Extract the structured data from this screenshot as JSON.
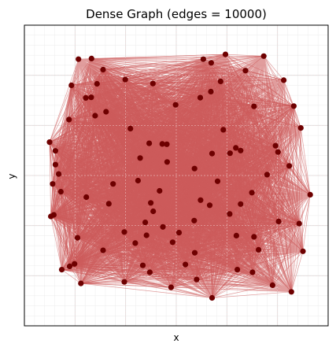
{
  "chart_data": {
    "type": "scatter",
    "title": "Dense Graph (edges = 10000)",
    "xlabel": "x",
    "ylabel": "y",
    "xlim": [
      0,
      1
    ],
    "ylim": [
      0,
      1
    ],
    "grid": true,
    "show_ticks": false,
    "colors": {
      "node": "#6e0000",
      "edge": "#cd5c5c",
      "grid_major": "#d9d9d9",
      "grid_minor": "#ececec"
    },
    "nodes": [
      [
        0.178,
        0.887
      ],
      [
        0.221,
        0.889
      ],
      [
        0.589,
        0.887
      ],
      [
        0.615,
        0.875
      ],
      [
        0.662,
        0.903
      ],
      [
        0.728,
        0.849
      ],
      [
        0.788,
        0.897
      ],
      [
        0.854,
        0.817
      ],
      [
        0.91,
        0.658
      ],
      [
        0.941,
        0.436
      ],
      [
        0.917,
        0.248
      ],
      [
        0.879,
        0.113
      ],
      [
        0.817,
        0.135
      ],
      [
        0.751,
        0.178
      ],
      [
        0.701,
        0.187
      ],
      [
        0.618,
        0.093
      ],
      [
        0.567,
        0.154
      ],
      [
        0.53,
        0.204
      ],
      [
        0.483,
        0.128
      ],
      [
        0.413,
        0.178
      ],
      [
        0.39,
        0.201
      ],
      [
        0.329,
        0.146
      ],
      [
        0.259,
        0.251
      ],
      [
        0.186,
        0.141
      ],
      [
        0.165,
        0.206
      ],
      [
        0.123,
        0.187
      ],
      [
        0.097,
        0.369
      ],
      [
        0.093,
        0.472
      ],
      [
        0.102,
        0.536
      ],
      [
        0.083,
        0.611
      ],
      [
        0.102,
        0.582
      ],
      [
        0.113,
        0.505
      ],
      [
        0.155,
        0.8
      ],
      [
        0.202,
        0.758
      ],
      [
        0.22,
        0.76
      ],
      [
        0.239,
        0.805
      ],
      [
        0.259,
        0.852
      ],
      [
        0.332,
        0.819
      ],
      [
        0.423,
        0.806
      ],
      [
        0.498,
        0.735
      ],
      [
        0.579,
        0.759
      ],
      [
        0.646,
        0.813
      ],
      [
        0.614,
        0.779
      ],
      [
        0.756,
        0.73
      ],
      [
        0.887,
        0.731
      ],
      [
        0.835,
        0.578
      ],
      [
        0.872,
        0.532
      ],
      [
        0.827,
        0.599
      ],
      [
        0.712,
        0.583
      ],
      [
        0.696,
        0.592
      ],
      [
        0.677,
        0.574
      ],
      [
        0.618,
        0.573
      ],
      [
        0.636,
        0.481
      ],
      [
        0.61,
        0.401
      ],
      [
        0.676,
        0.372
      ],
      [
        0.756,
        0.296
      ],
      [
        0.749,
        0.443
      ],
      [
        0.799,
        0.503
      ],
      [
        0.837,
        0.347
      ],
      [
        0.905,
        0.34
      ],
      [
        0.771,
        0.253
      ],
      [
        0.698,
        0.3
      ],
      [
        0.561,
        0.243
      ],
      [
        0.509,
        0.31
      ],
      [
        0.488,
        0.278
      ],
      [
        0.456,
        0.329
      ],
      [
        0.402,
        0.301
      ],
      [
        0.365,
        0.275
      ],
      [
        0.329,
        0.312
      ],
      [
        0.398,
        0.344
      ],
      [
        0.424,
        0.381
      ],
      [
        0.445,
        0.449
      ],
      [
        0.416,
        0.409
      ],
      [
        0.374,
        0.483
      ],
      [
        0.381,
        0.558
      ],
      [
        0.411,
        0.607
      ],
      [
        0.349,
        0.656
      ],
      [
        0.469,
        0.604
      ],
      [
        0.454,
        0.605
      ],
      [
        0.292,
        0.472
      ],
      [
        0.278,
        0.406
      ],
      [
        0.204,
        0.428
      ],
      [
        0.175,
        0.293
      ],
      [
        0.149,
        0.198
      ],
      [
        0.233,
        0.699
      ],
      [
        0.269,
        0.712
      ],
      [
        0.147,
        0.686
      ],
      [
        0.12,
        0.446
      ],
      [
        0.087,
        0.364
      ],
      [
        0.559,
        0.35
      ],
      [
        0.58,
        0.418
      ],
      [
        0.712,
        0.405
      ],
      [
        0.655,
        0.652
      ],
      [
        0.56,
        0.523
      ],
      [
        0.47,
        0.545
      ]
    ]
  }
}
